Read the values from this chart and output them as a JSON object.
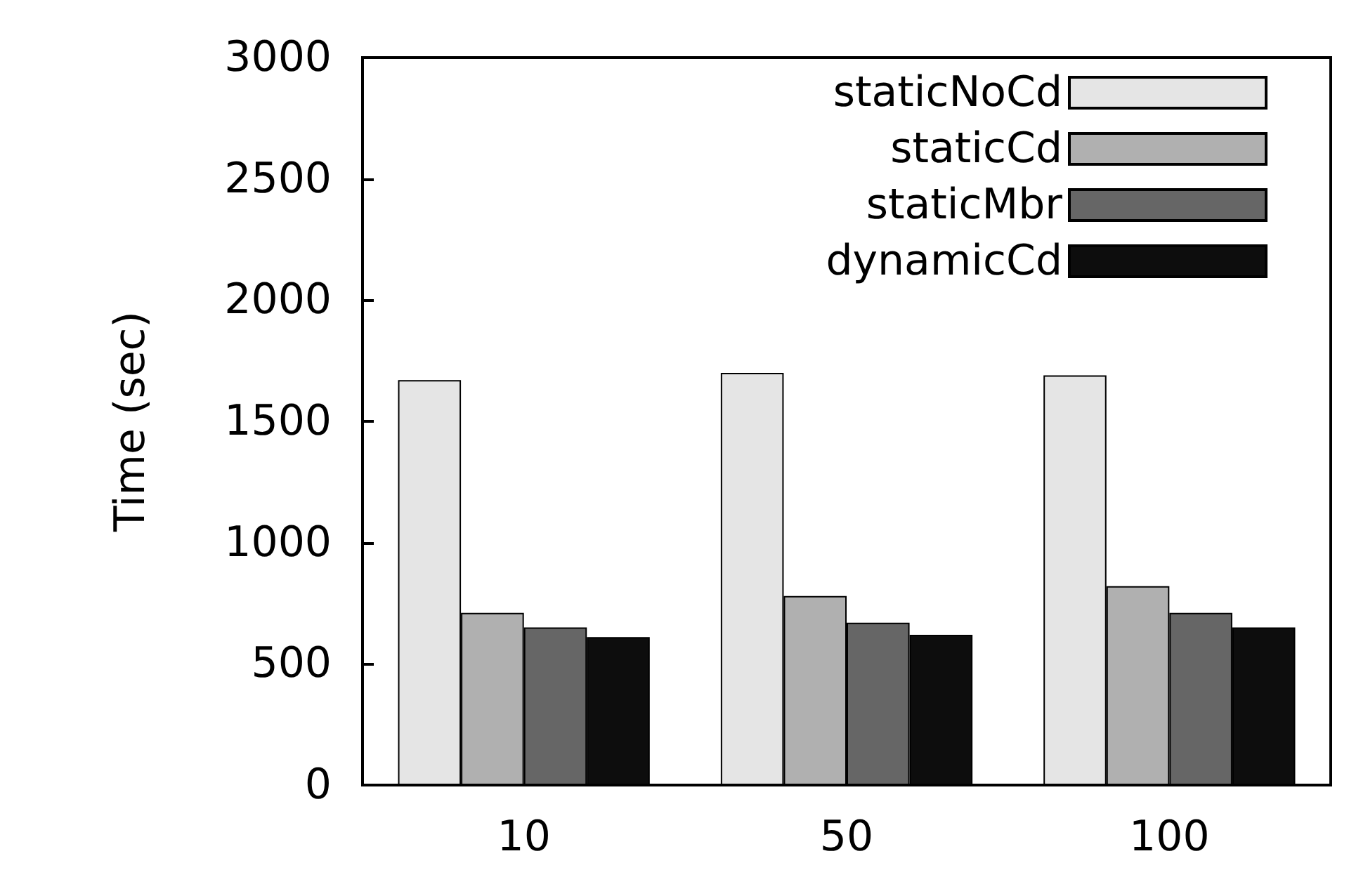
{
  "chart_data": {
    "type": "bar",
    "ylabel": "Time (sec)",
    "categories": [
      "10",
      "50",
      "100"
    ],
    "series": [
      {
        "name": "staticNoCd",
        "color": "#e5e5e5",
        "values": [
          1670,
          1700,
          1690
        ]
      },
      {
        "name": "staticCd",
        "color": "#b0b0b0",
        "values": [
          710,
          780,
          820
        ]
      },
      {
        "name": "staticMbr",
        "color": "#666666",
        "values": [
          650,
          670,
          710
        ]
      },
      {
        "name": "dynamicCd",
        "color": "#0d0d0d",
        "values": [
          610,
          620,
          650
        ]
      }
    ],
    "ylim": [
      0,
      3000
    ],
    "yticks": [
      0,
      500,
      1000,
      1500,
      2000,
      2500,
      3000
    ],
    "grid": false,
    "legend": "top right"
  }
}
